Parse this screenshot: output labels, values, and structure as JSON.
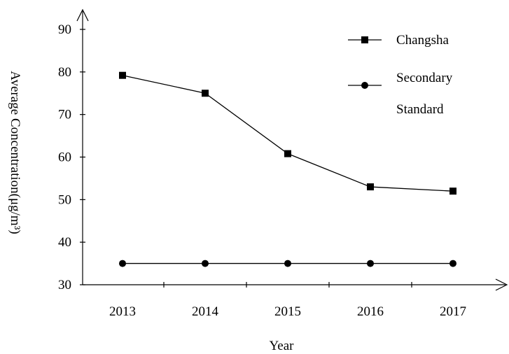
{
  "chart_data": {
    "type": "line",
    "xlabel": "Year",
    "ylabel": "Average Concentration(μg/m³)",
    "categories": [
      "2013",
      "2014",
      "2015",
      "2016",
      "2017"
    ],
    "y_ticks": [
      30,
      40,
      50,
      60,
      70,
      80,
      90
    ],
    "ylim": [
      30,
      90
    ],
    "grid": false,
    "legend_position": "top-right",
    "series": [
      {
        "name": "Changsha",
        "marker": "square",
        "values": [
          79.2,
          75.0,
          60.8,
          53.0,
          52.0
        ]
      },
      {
        "name": "Secondary Standard",
        "marker": "circle",
        "values": [
          35,
          35,
          35,
          35,
          35
        ]
      }
    ],
    "legend": {
      "changsha": "Changsha",
      "secondary_line1": "Secondary",
      "secondary_line2": "Standard"
    },
    "colors": {
      "line": "#000000",
      "background": "#ffffff"
    }
  }
}
